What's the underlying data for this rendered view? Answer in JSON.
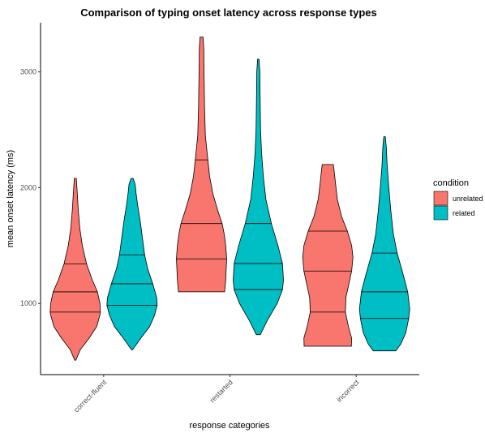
{
  "chart_data": {
    "type": "violin",
    "title": "Comparison of typing onset latency across response types",
    "xlabel": "response categories",
    "ylabel": "mean onset latency (ms)",
    "categories": [
      "correct-fluent",
      "restarted",
      "incorrect"
    ],
    "y_ticks": [
      1000,
      2000,
      3000
    ],
    "ylim": [
      385,
      3425
    ],
    "grid": false,
    "legend": {
      "title": "condition",
      "position": "right",
      "entries": [
        {
          "name": "unrelated",
          "color": "#F8766D"
        },
        {
          "name": "related",
          "color": "#00BFC4"
        }
      ]
    },
    "violins": [
      {
        "category": "correct-fluent",
        "condition": "unrelated",
        "color": "#F8766D",
        "min": 510,
        "max": 2080,
        "quantiles": [
          925,
          1100,
          1340
        ],
        "density": [
          [
            510,
            0.02
          ],
          [
            600,
            0.2
          ],
          [
            700,
            0.55
          ],
          [
            800,
            0.85
          ],
          [
            900,
            0.98
          ],
          [
            925,
            1.0
          ],
          [
            1000,
            0.98
          ],
          [
            1100,
            0.88
          ],
          [
            1200,
            0.68
          ],
          [
            1340,
            0.45
          ],
          [
            1500,
            0.28
          ],
          [
            1650,
            0.18
          ],
          [
            1800,
            0.12
          ],
          [
            1950,
            0.08
          ],
          [
            2080,
            0.04
          ]
        ]
      },
      {
        "category": "correct-fluent",
        "condition": "related",
        "color": "#00BFC4",
        "min": 600,
        "max": 2080,
        "quantiles": [
          985,
          1170,
          1420
        ],
        "density": [
          [
            600,
            0.02
          ],
          [
            700,
            0.35
          ],
          [
            800,
            0.7
          ],
          [
            900,
            0.9
          ],
          [
            985,
            1.0
          ],
          [
            1050,
            0.98
          ],
          [
            1170,
            0.82
          ],
          [
            1300,
            0.62
          ],
          [
            1420,
            0.5
          ],
          [
            1550,
            0.42
          ],
          [
            1700,
            0.33
          ],
          [
            1850,
            0.22
          ],
          [
            1950,
            0.16
          ],
          [
            2030,
            0.12
          ],
          [
            2080,
            0.04
          ]
        ]
      },
      {
        "category": "restarted",
        "condition": "unrelated",
        "color": "#F8766D",
        "min": 1100,
        "max": 3300,
        "quantiles": [
          1385,
          1690,
          2240
        ],
        "density": [
          [
            1100,
            0.92
          ],
          [
            1200,
            0.96
          ],
          [
            1300,
            0.98
          ],
          [
            1385,
            1.0
          ],
          [
            1500,
            0.96
          ],
          [
            1600,
            0.9
          ],
          [
            1690,
            0.82
          ],
          [
            1800,
            0.65
          ],
          [
            1950,
            0.45
          ],
          [
            2100,
            0.32
          ],
          [
            2240,
            0.25
          ],
          [
            2450,
            0.15
          ],
          [
            2700,
            0.12
          ],
          [
            3000,
            0.1
          ],
          [
            3200,
            0.09
          ],
          [
            3300,
            0.06
          ]
        ]
      },
      {
        "category": "restarted",
        "condition": "related",
        "color": "#00BFC4",
        "min": 730,
        "max": 3110,
        "quantiles": [
          1120,
          1345,
          1690
        ],
        "density": [
          [
            730,
            0.08
          ],
          [
            850,
            0.35
          ],
          [
            1000,
            0.75
          ],
          [
            1120,
            0.96
          ],
          [
            1200,
            1.0
          ],
          [
            1345,
            0.96
          ],
          [
            1500,
            0.78
          ],
          [
            1690,
            0.52
          ],
          [
            1900,
            0.3
          ],
          [
            2100,
            0.2
          ],
          [
            2300,
            0.13
          ],
          [
            2500,
            0.09
          ],
          [
            2800,
            0.07
          ],
          [
            3000,
            0.06
          ],
          [
            3110,
            0.03
          ]
        ]
      },
      {
        "category": "incorrect",
        "condition": "unrelated",
        "color": "#F8766D",
        "min": 630,
        "max": 2200,
        "quantiles": [
          925,
          1280,
          1625
        ],
        "density": [
          [
            630,
            0.94
          ],
          [
            700,
            0.95
          ],
          [
            800,
            0.82
          ],
          [
            925,
            0.7
          ],
          [
            1050,
            0.72
          ],
          [
            1150,
            0.82
          ],
          [
            1280,
            0.95
          ],
          [
            1400,
            1.0
          ],
          [
            1500,
            0.95
          ],
          [
            1625,
            0.78
          ],
          [
            1750,
            0.55
          ],
          [
            1900,
            0.38
          ],
          [
            2050,
            0.3
          ],
          [
            2150,
            0.25
          ],
          [
            2200,
            0.22
          ]
        ]
      },
      {
        "category": "incorrect",
        "condition": "related",
        "color": "#00BFC4",
        "min": 590,
        "max": 2440,
        "quantiles": [
          870,
          1100,
          1435
        ],
        "density": [
          [
            590,
            0.45
          ],
          [
            650,
            0.65
          ],
          [
            750,
            0.85
          ],
          [
            870,
            0.96
          ],
          [
            950,
            1.0
          ],
          [
            1100,
            0.92
          ],
          [
            1250,
            0.74
          ],
          [
            1435,
            0.5
          ],
          [
            1600,
            0.35
          ],
          [
            1800,
            0.25
          ],
          [
            2000,
            0.17
          ],
          [
            2200,
            0.1
          ],
          [
            2350,
            0.07
          ],
          [
            2440,
            0.03
          ]
        ]
      }
    ]
  }
}
